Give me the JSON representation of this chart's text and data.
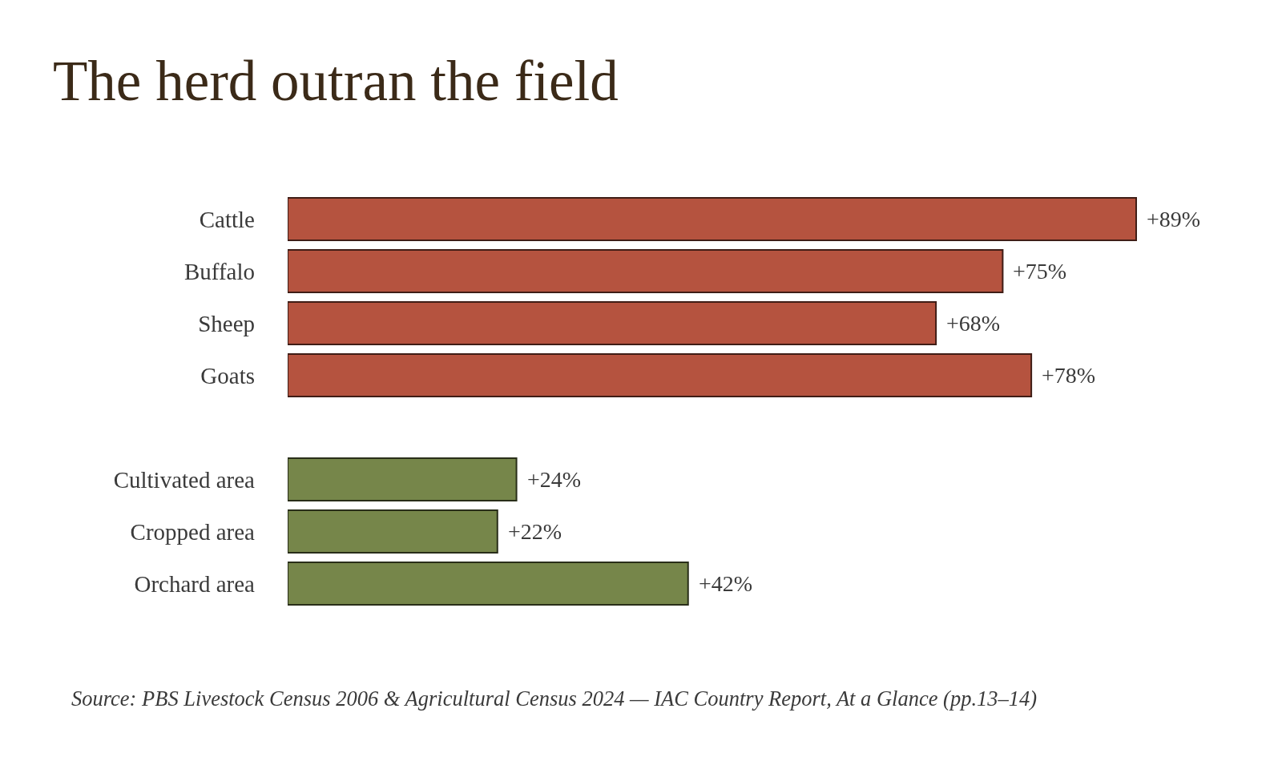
{
  "chart_data": {
    "type": "bar",
    "orientation": "horizontal",
    "title": "The herd outran the field",
    "categories": [
      "Cattle",
      "Buffalo",
      "Sheep",
      "Goats",
      null,
      "Cultivated area",
      "Cropped area",
      "Orchard area"
    ],
    "values": [
      89,
      75,
      68,
      78,
      null,
      24,
      22,
      42
    ],
    "colors": [
      "#b5533f",
      "#b5533f",
      "#b5533f",
      "#b5533f",
      null,
      "#76864a",
      "#76864a",
      "#76864a"
    ],
    "value_labels": [
      "+89%",
      "+75%",
      "+68%",
      "+78%",
      null,
      "+24%",
      "+22%",
      "+42%"
    ],
    "tick_labels": "y",
    "annotations": [
      "Source: PBS Livestock Census 2006 & Agricultural Census 2024 — IAC Country Report, At a Glance (pp.13–14)"
    ]
  }
}
